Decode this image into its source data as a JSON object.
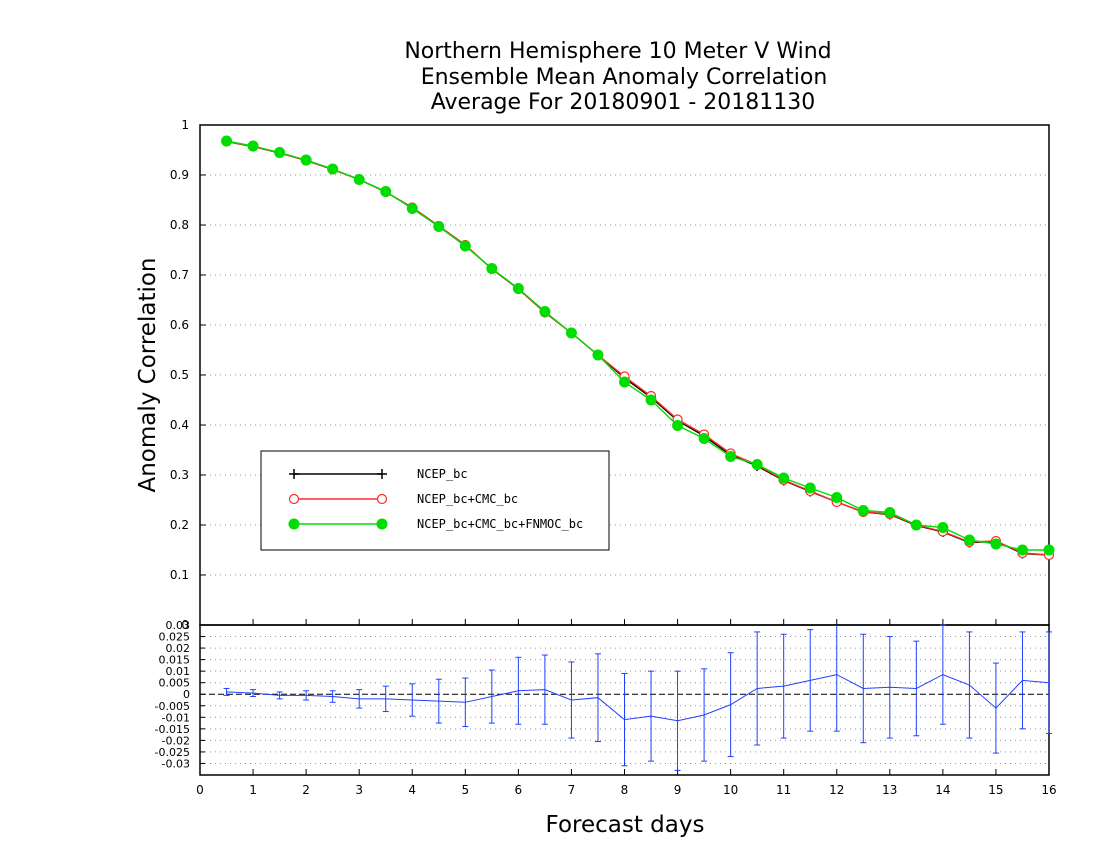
{
  "chart_data": {
    "type": "line",
    "title_lines": [
      "Northern Hemisphere 10 Meter V Wind",
      "Ensemble Mean Anomaly Correlation",
      "Average For 20180901 - 20181130"
    ],
    "xlabel": "Forecast days",
    "ylabel": "Anomaly Correlation",
    "xlim": [
      0,
      16
    ],
    "ylim": [
      0,
      1
    ],
    "x_ticks": [
      "0",
      "1",
      "2",
      "3",
      "4",
      "5",
      "6",
      "7",
      "8",
      "9",
      "10",
      "11",
      "12",
      "13",
      "14",
      "15",
      "16"
    ],
    "y_ticks": [
      "0",
      "0.1",
      "0.2",
      "0.3",
      "0.4",
      "0.5",
      "0.6",
      "0.7",
      "0.8",
      "0.9",
      "1"
    ],
    "grid": true,
    "legend_position": "lower-left",
    "x": [
      0.5,
      1,
      1.5,
      2,
      2.5,
      3,
      3.5,
      4,
      4.5,
      5,
      5.5,
      6,
      6.5,
      7,
      7.5,
      8,
      8.5,
      9,
      9.5,
      10,
      10.5,
      11,
      11.5,
      12,
      12.5,
      13,
      13.5,
      14,
      14.5,
      15,
      15.5,
      16
    ],
    "series": [
      {
        "name": "NCEP_bc",
        "color": "#000000",
        "marker": "plus",
        "values": [
          0.967,
          0.957,
          0.944,
          0.929,
          0.911,
          0.891,
          0.866,
          0.835,
          0.798,
          0.76,
          0.712,
          0.672,
          0.625,
          0.584,
          0.54,
          0.494,
          0.455,
          0.409,
          0.378,
          0.34,
          0.318,
          0.289,
          0.267,
          0.246,
          0.226,
          0.221,
          0.199,
          0.186,
          0.165,
          0.167,
          0.143,
          0.14
        ]
      },
      {
        "name": "NCEP_bc+CMC_bc",
        "color": "#ff2a2a",
        "marker": "open-circle",
        "values": [
          0.967,
          0.957,
          0.944,
          0.929,
          0.911,
          0.891,
          0.866,
          0.835,
          0.798,
          0.76,
          0.712,
          0.672,
          0.625,
          0.584,
          0.54,
          0.497,
          0.458,
          0.411,
          0.381,
          0.343,
          0.32,
          0.29,
          0.268,
          0.246,
          0.226,
          0.222,
          0.2,
          0.187,
          0.166,
          0.168,
          0.144,
          0.14
        ]
      },
      {
        "name": "NCEP_bc+CMC_bc+FNMOC_bc",
        "color": "#00dd00",
        "marker": "filled-circle",
        "values": [
          0.968,
          0.958,
          0.945,
          0.93,
          0.912,
          0.891,
          0.867,
          0.833,
          0.797,
          0.758,
          0.713,
          0.673,
          0.627,
          0.584,
          0.54,
          0.486,
          0.45,
          0.399,
          0.373,
          0.337,
          0.321,
          0.294,
          0.274,
          0.255,
          0.229,
          0.225,
          0.2,
          0.195,
          0.17,
          0.162,
          0.15,
          0.15
        ]
      }
    ],
    "diff_panel": {
      "ylim": [
        -0.035,
        0.03
      ],
      "y_ticks": [
        "-0.03",
        "-0.025",
        "-0.02",
        "-0.015",
        "-0.01",
        "-0.005",
        "0",
        "0.005",
        "0.01",
        "0.015",
        "0.02",
        "0.025",
        "0.03"
      ],
      "line_color": "#2040ff",
      "zero_line": true,
      "values": [
        0.001,
        0.0005,
        -0.0005,
        -0.0005,
        -0.001,
        -0.002,
        -0.002,
        -0.0025,
        -0.003,
        -0.0035,
        -0.001,
        0.0015,
        0.002,
        -0.0025,
        -0.0015,
        -0.011,
        -0.0095,
        -0.0115,
        -0.009,
        -0.0045,
        0.0025,
        0.0035,
        0.006,
        0.0085,
        0.0025,
        0.003,
        0.0025,
        0.0085,
        0.004,
        -0.006,
        0.006,
        0.005
      ],
      "error_half_width": [
        0.0015,
        0.0015,
        0.0015,
        0.002,
        0.0025,
        0.004,
        0.0055,
        0.007,
        0.0095,
        0.0105,
        0.0115,
        0.0145,
        0.015,
        0.0165,
        0.019,
        0.02,
        0.0195,
        0.0215,
        0.02,
        0.0225,
        0.0245,
        0.0225,
        0.022,
        0.0245,
        0.0235,
        0.022,
        0.0205,
        0.0215,
        0.023,
        0.0195,
        0.021,
        0.022
      ]
    }
  }
}
